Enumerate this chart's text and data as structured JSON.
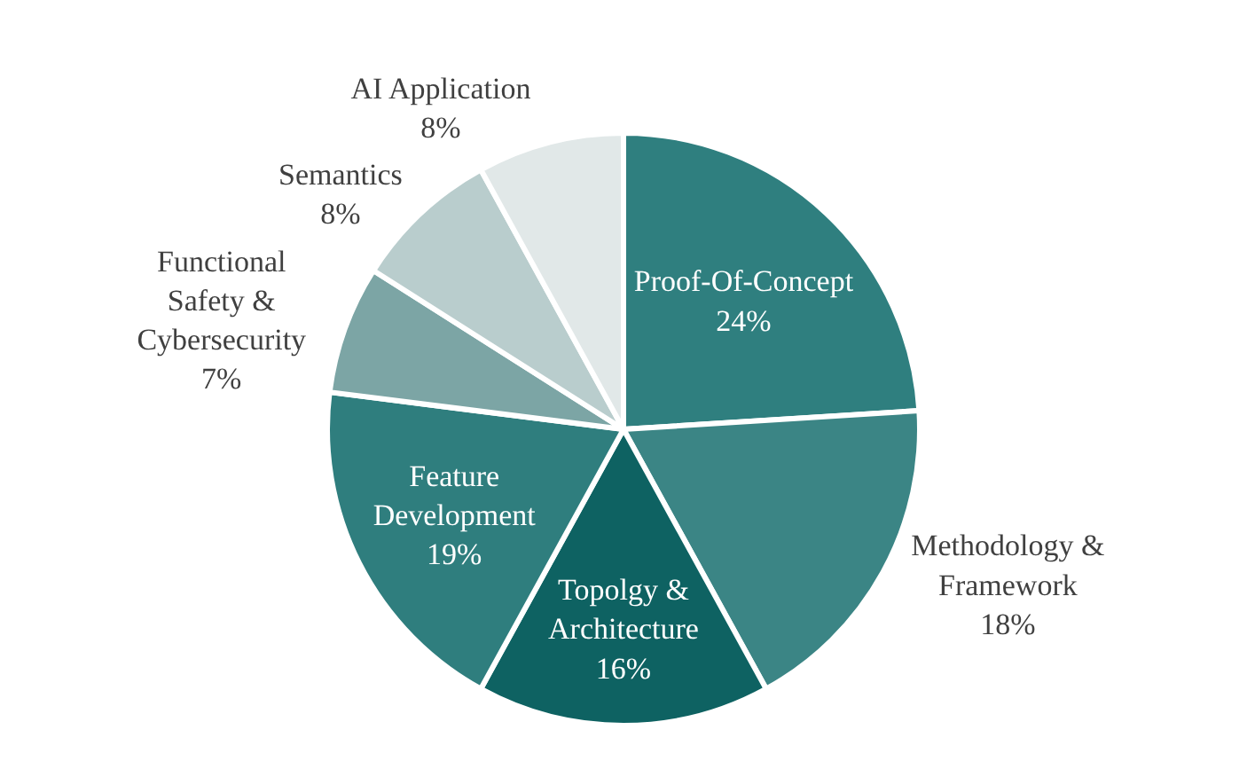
{
  "chart_data": {
    "type": "pie",
    "categories": [
      "Proof-Of-Concept",
      "Methodology & Framework",
      "Topolgy & Architecture",
      "Feature Development",
      "Functional Safety & Cybersecurity",
      "Semantics",
      "AI Application"
    ],
    "values": [
      24,
      18,
      16,
      19,
      7,
      8,
      8
    ],
    "value_labels": [
      "24%",
      "18%",
      "16%",
      "19%",
      "7%",
      "8%",
      "8%"
    ],
    "colors": [
      "#2f7f7f",
      "#3b8585",
      "#0e6262",
      "#2f7e7e",
      "#7ca5a5",
      "#b9cdcd",
      "#e1e8e8"
    ]
  }
}
